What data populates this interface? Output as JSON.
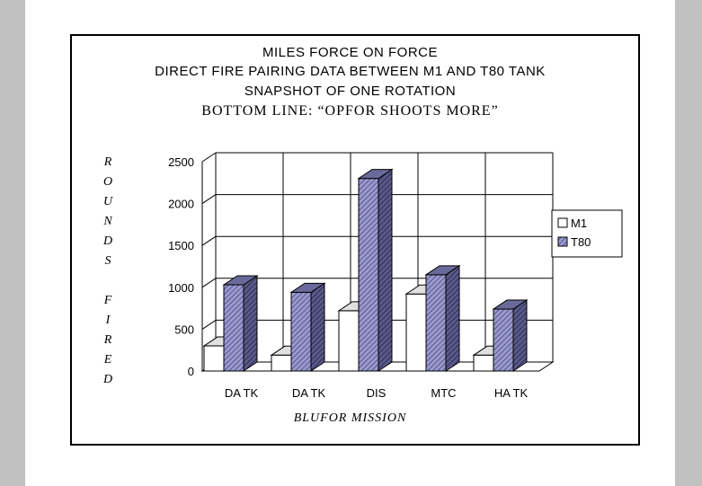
{
  "titles": {
    "line1": "MILES FORCE ON FORCE",
    "line2": "DIRECT FIRE PAIRING DATA BETWEEN M1 AND T80 TANK",
    "line3": "SNAPSHOT OF ONE ROTATION",
    "line4": "BOTTOM LINE: “OPFOR SHOOTS MORE”"
  },
  "ylabel_letters": [
    "R",
    "O",
    "U",
    "N",
    "D",
    "S",
    "",
    "F",
    "I",
    "R",
    "E",
    "D"
  ],
  "chart_data": {
    "type": "bar",
    "title": "MILES FORCE ON FORCE",
    "xlabel": "BLUFOR MISSION",
    "ylabel": "ROUNDS FIRED",
    "categories": [
      "DA TK",
      "DA TK",
      "DIS",
      "MTC",
      "HA TK"
    ],
    "series": [
      {
        "name": "M1",
        "values": [
          300,
          190,
          720,
          920,
          190
        ],
        "color": "#ffffff"
      },
      {
        "name": "T80",
        "values": [
          1030,
          940,
          2300,
          1150,
          740
        ],
        "color": "#9a9ad0"
      }
    ],
    "ylim": [
      0,
      2500
    ],
    "yticks": [
      0,
      500,
      1000,
      1500,
      2000,
      2500
    ],
    "grid": true,
    "legend": "right"
  }
}
